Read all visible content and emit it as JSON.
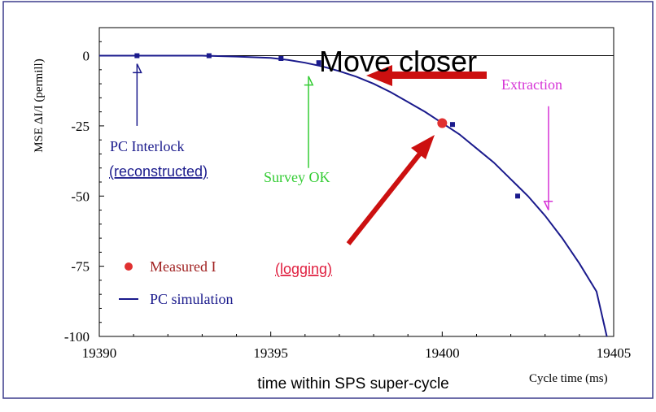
{
  "chart_data": {
    "type": "line",
    "xlabel": "Cycle time (ms)",
    "ylabel": "MSE ΔI/I (permill)",
    "xlim": [
      19390,
      19405
    ],
    "ylim": [
      -100,
      10
    ],
    "x_ticks": [
      "19390",
      "19395",
      "19400",
      "19405"
    ],
    "y_ticks": [
      "0",
      "-25",
      "-50",
      "-75",
      "-100"
    ],
    "zero_line": true,
    "series": [
      {
        "name": "PC simulation",
        "kind": "curve",
        "color": "#1a1a8c",
        "x": [
          19390,
          19391,
          19392,
          19393,
          19394,
          19395,
          19395.5,
          19396,
          19396.5,
          19397,
          19397.5,
          19398,
          19398.5,
          19399,
          19399.5,
          19400,
          19400.5,
          19401,
          19401.5,
          19402,
          19402.5,
          19403,
          19403.5,
          19404,
          19404.5,
          19404.8
        ],
        "y": [
          0,
          0,
          0,
          0,
          -0.3,
          -0.8,
          -1.5,
          -2.5,
          -3.8,
          -5.5,
          -7.5,
          -10,
          -13,
          -16.5,
          -20,
          -24,
          -28,
          -33,
          -38,
          -44,
          -50,
          -57,
          -65,
          -74,
          -84,
          -100
        ]
      },
      {
        "name": "simulation points",
        "kind": "markers",
        "color": "#1a1a8c",
        "x": [
          19391.1,
          19393.2,
          19395.3,
          19396.4,
          19400.3,
          19402.2
        ],
        "y": [
          0,
          0,
          -1,
          -2.5,
          -24.5,
          -50
        ]
      },
      {
        "name": "Measured I",
        "kind": "point",
        "color": "#e03030",
        "x": [
          19400
        ],
        "y": [
          -24
        ]
      }
    ],
    "legend": [
      {
        "label": "Measured I",
        "symbol": "dot",
        "color": "#e03030"
      },
      {
        "label": "PC simulation",
        "symbol": "line",
        "color": "#1a1a8c"
      }
    ],
    "annotations": [
      {
        "id": "pc-interlock",
        "lines": [
          "PC Interlock",
          "(reconstructed)"
        ],
        "color": "#1a1a8c",
        "arrow_x": 19391.1,
        "arrow_y_from": -25,
        "arrow_y_to": 0
      },
      {
        "id": "survey-ok",
        "lines": [
          "Survey OK"
        ],
        "color": "#33cc33",
        "arrow_x": 19396.1,
        "arrow_y_from": -40,
        "arrow_y_to": -5
      },
      {
        "id": "extraction",
        "lines": [
          "Extraction"
        ],
        "color": "#d633d6",
        "arrow_x": 19403.1,
        "arrow_y_from": -18,
        "arrow_y_to": -55
      },
      {
        "id": "logging",
        "lines": [
          "(logging)"
        ],
        "color": "#e02040"
      },
      {
        "id": "move-closer",
        "lines": [
          "Move closer"
        ],
        "color": "#000000"
      }
    ],
    "caption": "time within SPS super-cycle"
  },
  "colors": {
    "simulation": "#1a1a8c",
    "measured": "#e03030",
    "survey": "#33cc33",
    "extraction": "#d633d6",
    "logging": "#e02040",
    "bigArrow": "#cc1010",
    "frame": "#3b3b8c"
  }
}
